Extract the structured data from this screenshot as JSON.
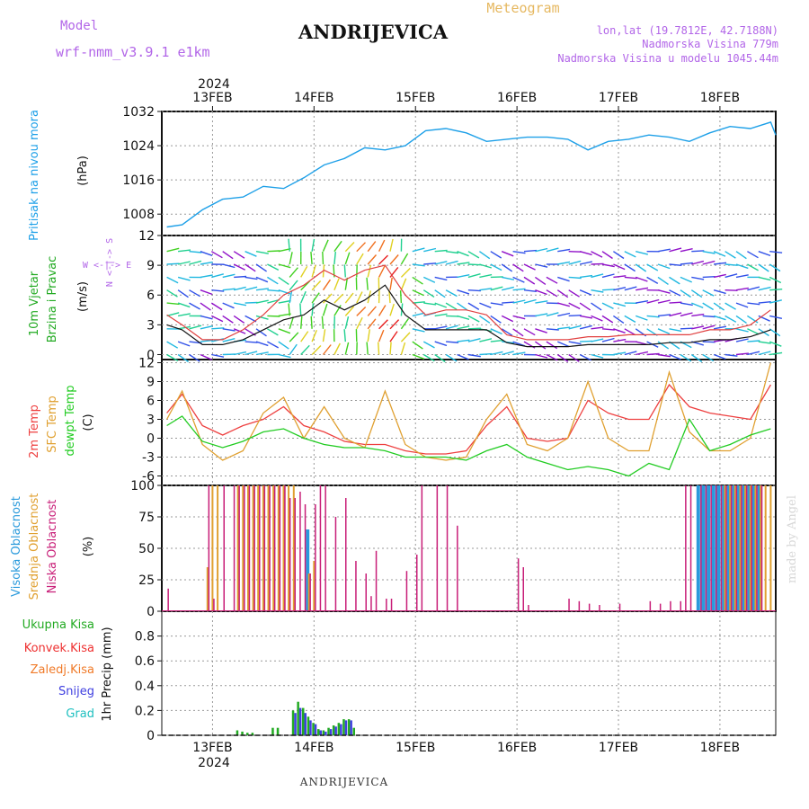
{
  "header": {
    "model_label": "Model",
    "model_name": "wrf-nmm_v3.9.1 e1km",
    "location": "ANDRIJEVICA",
    "meteogram_label": "Meteogram",
    "coords": "lon,lat (19.7812E, 42.7188N)",
    "altitude": "Nadmorska Visina 779m",
    "model_altitude": "Nadmorska Visina u modelu 1045.44m",
    "footer_location": "ANDRIJEVICA",
    "watermark": "made by Angel"
  },
  "colors": {
    "pressure": "#1ea0e8",
    "temp2m": "#ee4040",
    "sfc_temp": "#e0a030",
    "dewpt": "#22cc22",
    "high_cloud": "#2a9adc",
    "mid_cloud": "#e0a030",
    "low_cloud": "#c81e78",
    "total_precip": "#22aa22",
    "conv_precip": "#ee3030",
    "freezing_precip": "#f07a28",
    "snow": "#4040e0",
    "hail": "#20c0c0",
    "purple_text": "#b266e8",
    "orange_text": "#e6b860"
  },
  "chart_data": [
    {
      "type": "line",
      "panel": "pressure",
      "ylabel_main": "Pritisak na nivou mora",
      "unit": "(hPa)",
      "x_unit": "days from 13FEB 00UTC",
      "ylim": [
        1003,
        1032
      ],
      "yticks": [
        1008,
        1016,
        1024,
        1032
      ],
      "grid": true,
      "series": [
        {
          "x": [
            -0.45,
            -0.3,
            -0.1,
            0.1,
            0.3,
            0.5,
            0.7,
            0.9,
            1.1,
            1.3,
            1.5,
            1.7,
            1.9,
            2.1,
            2.3,
            2.5,
            2.7,
            2.9,
            3.1,
            3.3,
            3.5,
            3.7,
            3.9,
            4.1,
            4.3,
            4.5,
            4.7,
            4.9,
            5.1,
            5.3,
            5.5,
            5.55
          ],
          "values": [
            1005,
            1005.5,
            1009,
            1011.5,
            1012,
            1014.5,
            1014,
            1016.5,
            1019.5,
            1021,
            1023.5,
            1023,
            1024,
            1027.5,
            1028,
            1027,
            1025,
            1025.5,
            1026,
            1026,
            1025.5,
            1023,
            1025,
            1025.5,
            1026.5,
            1026,
            1025,
            1027,
            1028.5,
            1028,
            1029.5,
            1026.5
          ]
        }
      ]
    },
    {
      "type": "line",
      "panel": "wind",
      "ylabel_main": "10m Vjetar",
      "ylabel_sub": "Brzina i Pravac",
      "unit": "(m/s)",
      "compass": "W <-|-> E",
      "compass_ns": "N <-|-> S",
      "x_unit": "days from 13FEB 00UTC",
      "ylim": [
        -0.5,
        12
      ],
      "yticks": [
        0,
        3,
        6,
        9,
        12
      ],
      "grid": true,
      "series": [
        {
          "name": "speed",
          "x": [
            -0.45,
            -0.3,
            -0.1,
            0.1,
            0.3,
            0.5,
            0.7,
            0.9,
            1.1,
            1.3,
            1.5,
            1.7,
            1.9,
            2.1,
            2.3,
            2.5,
            2.7,
            2.9,
            3.1,
            3.3,
            3.5,
            3.7,
            3.9,
            4.1,
            4.3,
            4.5,
            4.7,
            4.9,
            5.1,
            5.3,
            5.5
          ],
          "values": [
            3,
            2.5,
            1,
            1,
            1.5,
            2.5,
            3.5,
            4,
            5.5,
            4.5,
            5.5,
            7,
            4,
            2.5,
            2.5,
            2.5,
            2.5,
            1.2,
            0.8,
            0.8,
            0.8,
            1,
            1,
            1,
            1,
            1.2,
            1.2,
            1.5,
            1.5,
            1.8,
            2.5
          ]
        },
        {
          "name": "gust",
          "x": [
            -0.45,
            -0.3,
            -0.1,
            0.1,
            0.3,
            0.5,
            0.7,
            0.9,
            1.1,
            1.3,
            1.5,
            1.7,
            1.9,
            2.1,
            2.3,
            2.5,
            2.7,
            2.9,
            3.1,
            3.3,
            3.5,
            3.7,
            3.9,
            4.1,
            4.3,
            4.5,
            4.7,
            4.9,
            5.1,
            5.3,
            5.5
          ],
          "values": [
            4,
            3,
            1.5,
            1.5,
            2.5,
            4,
            6,
            7,
            8.5,
            7.5,
            8.5,
            9,
            6,
            4,
            4.5,
            4.5,
            4,
            2,
            1.5,
            1.5,
            1.5,
            1.8,
            1.8,
            2,
            2,
            2,
            2,
            2.5,
            2.5,
            3,
            4.5
          ]
        }
      ]
    },
    {
      "type": "line",
      "panel": "temperature",
      "labels": [
        "2m Temp",
        "SFC Temp",
        "dewpt Temp"
      ],
      "unit": "(C)",
      "x_unit": "days from 13FEB 00UTC",
      "ylim": [
        -7.5,
        12.5
      ],
      "yticks": [
        -6,
        -3,
        0,
        3,
        6,
        9,
        12
      ],
      "grid": true,
      "series": [
        {
          "name": "2m Temp",
          "x": [
            -0.45,
            -0.3,
            -0.1,
            0.1,
            0.3,
            0.5,
            0.7,
            0.9,
            1.1,
            1.3,
            1.5,
            1.7,
            1.9,
            2.1,
            2.3,
            2.5,
            2.7,
            2.9,
            3.1,
            3.3,
            3.5,
            3.7,
            3.9,
            4.1,
            4.3,
            4.5,
            4.7,
            4.9,
            5.1,
            5.3,
            5.5
          ],
          "values": [
            4,
            7,
            2,
            0.5,
            2,
            3,
            5,
            2,
            1,
            -0.5,
            -1,
            -1,
            -2,
            -2.5,
            -2.5,
            -2,
            2,
            5,
            0,
            -0.5,
            0,
            6,
            4,
            3,
            3,
            8.5,
            5,
            4,
            3.5,
            3,
            8.5
          ]
        },
        {
          "name": "SFC Temp",
          "x": [
            -0.45,
            -0.3,
            -0.1,
            0.1,
            0.3,
            0.5,
            0.7,
            0.9,
            1.1,
            1.3,
            1.5,
            1.7,
            1.9,
            2.1,
            2.3,
            2.5,
            2.7,
            2.9,
            3.1,
            3.3,
            3.5,
            3.7,
            3.9,
            4.1,
            4.3,
            4.5,
            4.7,
            4.9,
            5.1,
            5.3,
            5.5
          ],
          "values": [
            3,
            7.5,
            -1,
            -3.5,
            -2,
            4,
            6.5,
            0,
            5,
            0,
            -1.5,
            7.5,
            -1,
            -3,
            -3.5,
            -3,
            3,
            7,
            -1,
            -2,
            0,
            9,
            0,
            -2,
            -2,
            10.5,
            1,
            -2,
            -2,
            0,
            12
          ]
        },
        {
          "name": "dewpt Temp",
          "x": [
            -0.45,
            -0.3,
            -0.1,
            0.1,
            0.3,
            0.5,
            0.7,
            0.9,
            1.1,
            1.3,
            1.5,
            1.7,
            1.9,
            2.1,
            2.3,
            2.5,
            2.7,
            2.9,
            3.1,
            3.3,
            3.5,
            3.7,
            3.9,
            4.1,
            4.3,
            4.5,
            4.7,
            4.9,
            5.1,
            5.3,
            5.5
          ],
          "values": [
            2,
            3.5,
            -0.5,
            -1.5,
            -0.5,
            1,
            1.5,
            0,
            -1,
            -1.5,
            -1.5,
            -2,
            -3,
            -3,
            -3,
            -3.5,
            -2,
            -1,
            -3,
            -4,
            -5,
            -4.5,
            -5,
            -6,
            -4,
            -5,
            3,
            -2,
            -1,
            0.5,
            1.5
          ]
        }
      ]
    },
    {
      "type": "bar",
      "panel": "cloud cover",
      "labels": [
        "Visoka Oblacnost",
        "Srednja Oblacnost",
        "Niska Oblacnost"
      ],
      "unit": "(%)",
      "x_unit": "days from 13FEB 00UTC",
      "ylim": [
        0,
        100
      ],
      "yticks": [
        0,
        25,
        50,
        75,
        100
      ],
      "grid": true,
      "series": [
        {
          "name": "Visoka Oblacnost",
          "x": [
            0.95,
            4.8,
            4.85,
            4.9,
            4.95,
            5.0,
            5.05,
            5.1,
            5.15,
            5.2,
            5.25,
            5.3,
            5.35,
            5.4
          ],
          "values": [
            65,
            100,
            100,
            100,
            100,
            100,
            100,
            100,
            100,
            100,
            100,
            100,
            100,
            100
          ]
        },
        {
          "name": "Srednja Oblacnost",
          "x": [
            -0.05,
            0.0,
            0.05,
            0.25,
            0.3,
            0.35,
            0.4,
            0.45,
            0.5,
            0.55,
            0.6,
            0.65,
            0.7,
            0.75,
            0.8,
            0.95,
            1.0,
            5.05,
            5.1,
            5.15,
            5.2,
            5.25,
            5.3,
            5.35,
            5.4,
            5.45,
            5.5
          ],
          "values": [
            35,
            100,
            100,
            100,
            100,
            100,
            100,
            100,
            100,
            100,
            100,
            100,
            100,
            100,
            100,
            30,
            40,
            100,
            100,
            100,
            100,
            100,
            100,
            100,
            100,
            100,
            100
          ]
        },
        {
          "name": "Niska Oblacnost",
          "x": [
            -0.45,
            -0.05,
            0.0,
            0.1,
            0.2,
            0.25,
            0.3,
            0.35,
            0.4,
            0.45,
            0.5,
            0.55,
            0.6,
            0.65,
            0.7,
            0.75,
            0.8,
            0.85,
            0.9,
            0.95,
            1.0,
            1.05,
            1.1,
            1.2,
            1.3,
            1.4,
            1.5,
            1.55,
            1.6,
            1.7,
            1.75,
            1.9,
            2.0,
            2.05,
            2.2,
            2.3,
            2.4,
            3.0,
            3.05,
            3.1,
            3.5,
            3.6,
            3.7,
            3.8,
            4.0,
            4.3,
            4.4,
            4.5,
            4.6,
            4.65,
            4.7,
            4.8,
            4.85,
            4.9,
            4.95,
            5.0,
            5.05,
            5.1,
            5.15,
            5.2,
            5.25,
            5.3,
            5.35,
            5.4
          ],
          "values": [
            18,
            100,
            10,
            100,
            100,
            100,
            100,
            100,
            100,
            100,
            100,
            100,
            100,
            100,
            100,
            90,
            90,
            95,
            85,
            30,
            85,
            100,
            100,
            75,
            90,
            40,
            30,
            12,
            48,
            10,
            10,
            32,
            45,
            100,
            100,
            100,
            68,
            42,
            35,
            5,
            10,
            8,
            6,
            5,
            6,
            8,
            6,
            8,
            8,
            100,
            100,
            100,
            100,
            100,
            100,
            100,
            100,
            100,
            100,
            100,
            100,
            100,
            100,
            100
          ]
        }
      ]
    },
    {
      "type": "bar",
      "panel": "precipitation",
      "labels": [
        "Ukupna Kisa",
        "Konvek.Kisa",
        "Zaledj.Kisa",
        "Snijeg",
        "Grad"
      ],
      "unit": "1hr Precip (mm)",
      "x_unit": "days from 13FEB 00UTC",
      "ylim": [
        0,
        1.0
      ],
      "yticks": [
        0,
        0.2,
        0.4,
        0.6,
        0.8
      ],
      "grid": true,
      "series": [
        {
          "name": "Ukupna Kisa",
          "x": [
            0.25,
            0.3,
            0.35,
            0.4,
            0.6,
            0.65,
            0.8,
            0.85,
            0.9,
            0.95,
            1.0,
            1.05,
            1.1,
            1.15,
            1.2,
            1.25,
            1.3,
            1.35,
            1.4
          ],
          "values": [
            0.04,
            0.03,
            0.02,
            0.02,
            0.06,
            0.06,
            0.2,
            0.27,
            0.22,
            0.15,
            0.1,
            0.05,
            0.04,
            0.06,
            0.08,
            0.1,
            0.13,
            0.13,
            0.06
          ]
        },
        {
          "name": "Snijeg",
          "x": [
            0.8,
            0.85,
            0.9,
            0.95,
            1.0,
            1.05,
            1.1,
            1.15,
            1.2,
            1.25,
            1.3,
            1.35
          ],
          "values": [
            0.18,
            0.22,
            0.18,
            0.12,
            0.09,
            0.04,
            0.03,
            0.05,
            0.07,
            0.09,
            0.12,
            0.12
          ]
        }
      ]
    }
  ],
  "time_axis": {
    "year": "2024",
    "dates": [
      "13FEB",
      "14FEB",
      "15FEB",
      "16FEB",
      "17FEB",
      "18FEB"
    ],
    "date_offsets": [
      0,
      1,
      2,
      3,
      4,
      5
    ]
  }
}
